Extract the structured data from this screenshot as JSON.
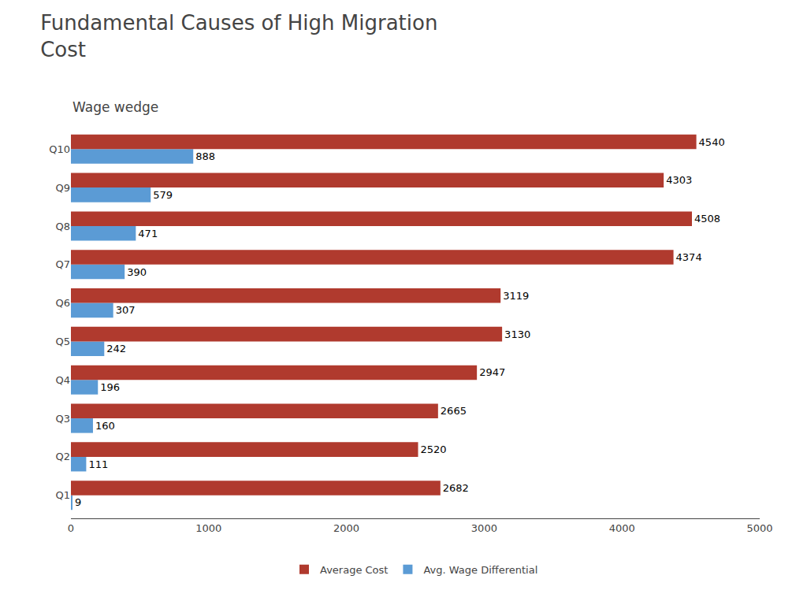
{
  "chart_data": {
    "type": "bar",
    "orientation": "horizontal",
    "title": "Fundamental Causes of High Migration\nCost",
    "subtitle": "Wage wedge",
    "categories": [
      "Q1",
      "Q2",
      "Q3",
      "Q4",
      "Q5",
      "Q6",
      "Q7",
      "Q8",
      "Q9",
      "Q10"
    ],
    "series": [
      {
        "name": "Average Cost",
        "color": "#b03a2e",
        "values": [
          2682,
          2520,
          2665,
          2947,
          3130,
          3119,
          4374,
          4508,
          4303,
          4540
        ]
      },
      {
        "name": "Avg. Wage Differential",
        "color": "#5b9bd5",
        "values": [
          9,
          111,
          160,
          196,
          242,
          307,
          390,
          471,
          579,
          888
        ]
      }
    ],
    "xlim": [
      0,
      5000
    ],
    "xticks": [
      0,
      1000,
      2000,
      3000,
      4000,
      5000
    ],
    "grid": false,
    "legend": "bottom",
    "data_labels": true
  }
}
